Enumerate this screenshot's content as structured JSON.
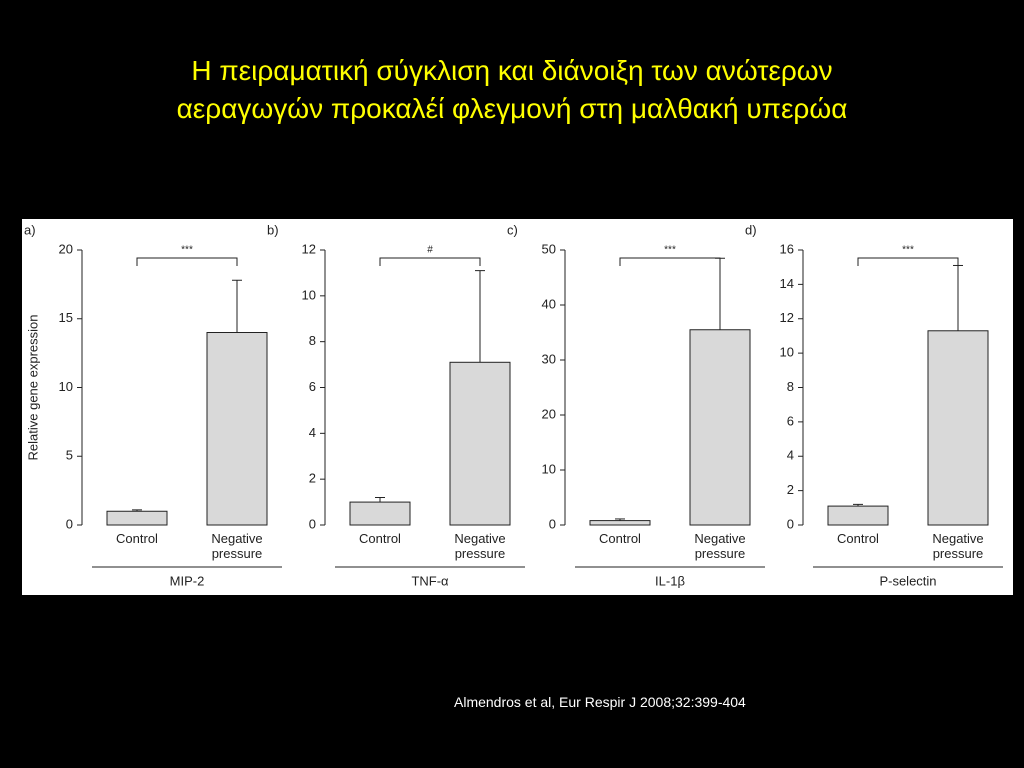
{
  "title": [
    "Η πειραματική σύγκλιση και διάνοιξη των ανώτερων",
    "αεραγωγών προκαλέί φλεγμονή στη μαλθακή υπερώα"
  ],
  "citation": "Almendros et al, Eur Respir J 2008;32:399-404",
  "chart_data": [
    {
      "type": "bar",
      "panel": "a)",
      "ylabel": "Relative gene expression",
      "xlabel": "MIP-2",
      "significance": "***",
      "categories": [
        "Control",
        "Negative pressure"
      ],
      "values": [
        1.0,
        14.0
      ],
      "errors": [
        0.1,
        3.8
      ],
      "color": "#d9d9d9",
      "ylim": [
        0,
        20
      ],
      "yticks": [
        0,
        5,
        10,
        15,
        20
      ]
    },
    {
      "type": "bar",
      "panel": "b)",
      "xlabel": "TNF-α",
      "significance": "#",
      "categories": [
        "Control",
        "Negative pressure"
      ],
      "values": [
        1.0,
        7.1
      ],
      "errors": [
        0.2,
        4.0
      ],
      "color": "#d9d9d9",
      "ylim": [
        0,
        12
      ],
      "yticks": [
        0,
        2,
        4,
        6,
        8,
        10,
        12
      ]
    },
    {
      "type": "bar",
      "panel": "c)",
      "xlabel": "IL-1β",
      "significance": "***",
      "categories": [
        "Control",
        "Negative pressure"
      ],
      "values": [
        0.8,
        35.5
      ],
      "errors": [
        0.3,
        13.0
      ],
      "color": "#d9d9d9",
      "ylim": [
        0,
        50
      ],
      "yticks": [
        0,
        10,
        20,
        30,
        40,
        50
      ]
    },
    {
      "type": "bar",
      "panel": "d)",
      "xlabel": "P-selectin",
      "significance": "***",
      "categories": [
        "Control",
        "Negative pressure"
      ],
      "values": [
        1.1,
        11.3
      ],
      "errors": [
        0.1,
        3.8
      ],
      "color": "#d9d9d9",
      "ylim": [
        0,
        16
      ],
      "yticks": [
        0,
        2,
        4,
        6,
        8,
        10,
        12,
        14,
        16
      ]
    }
  ]
}
